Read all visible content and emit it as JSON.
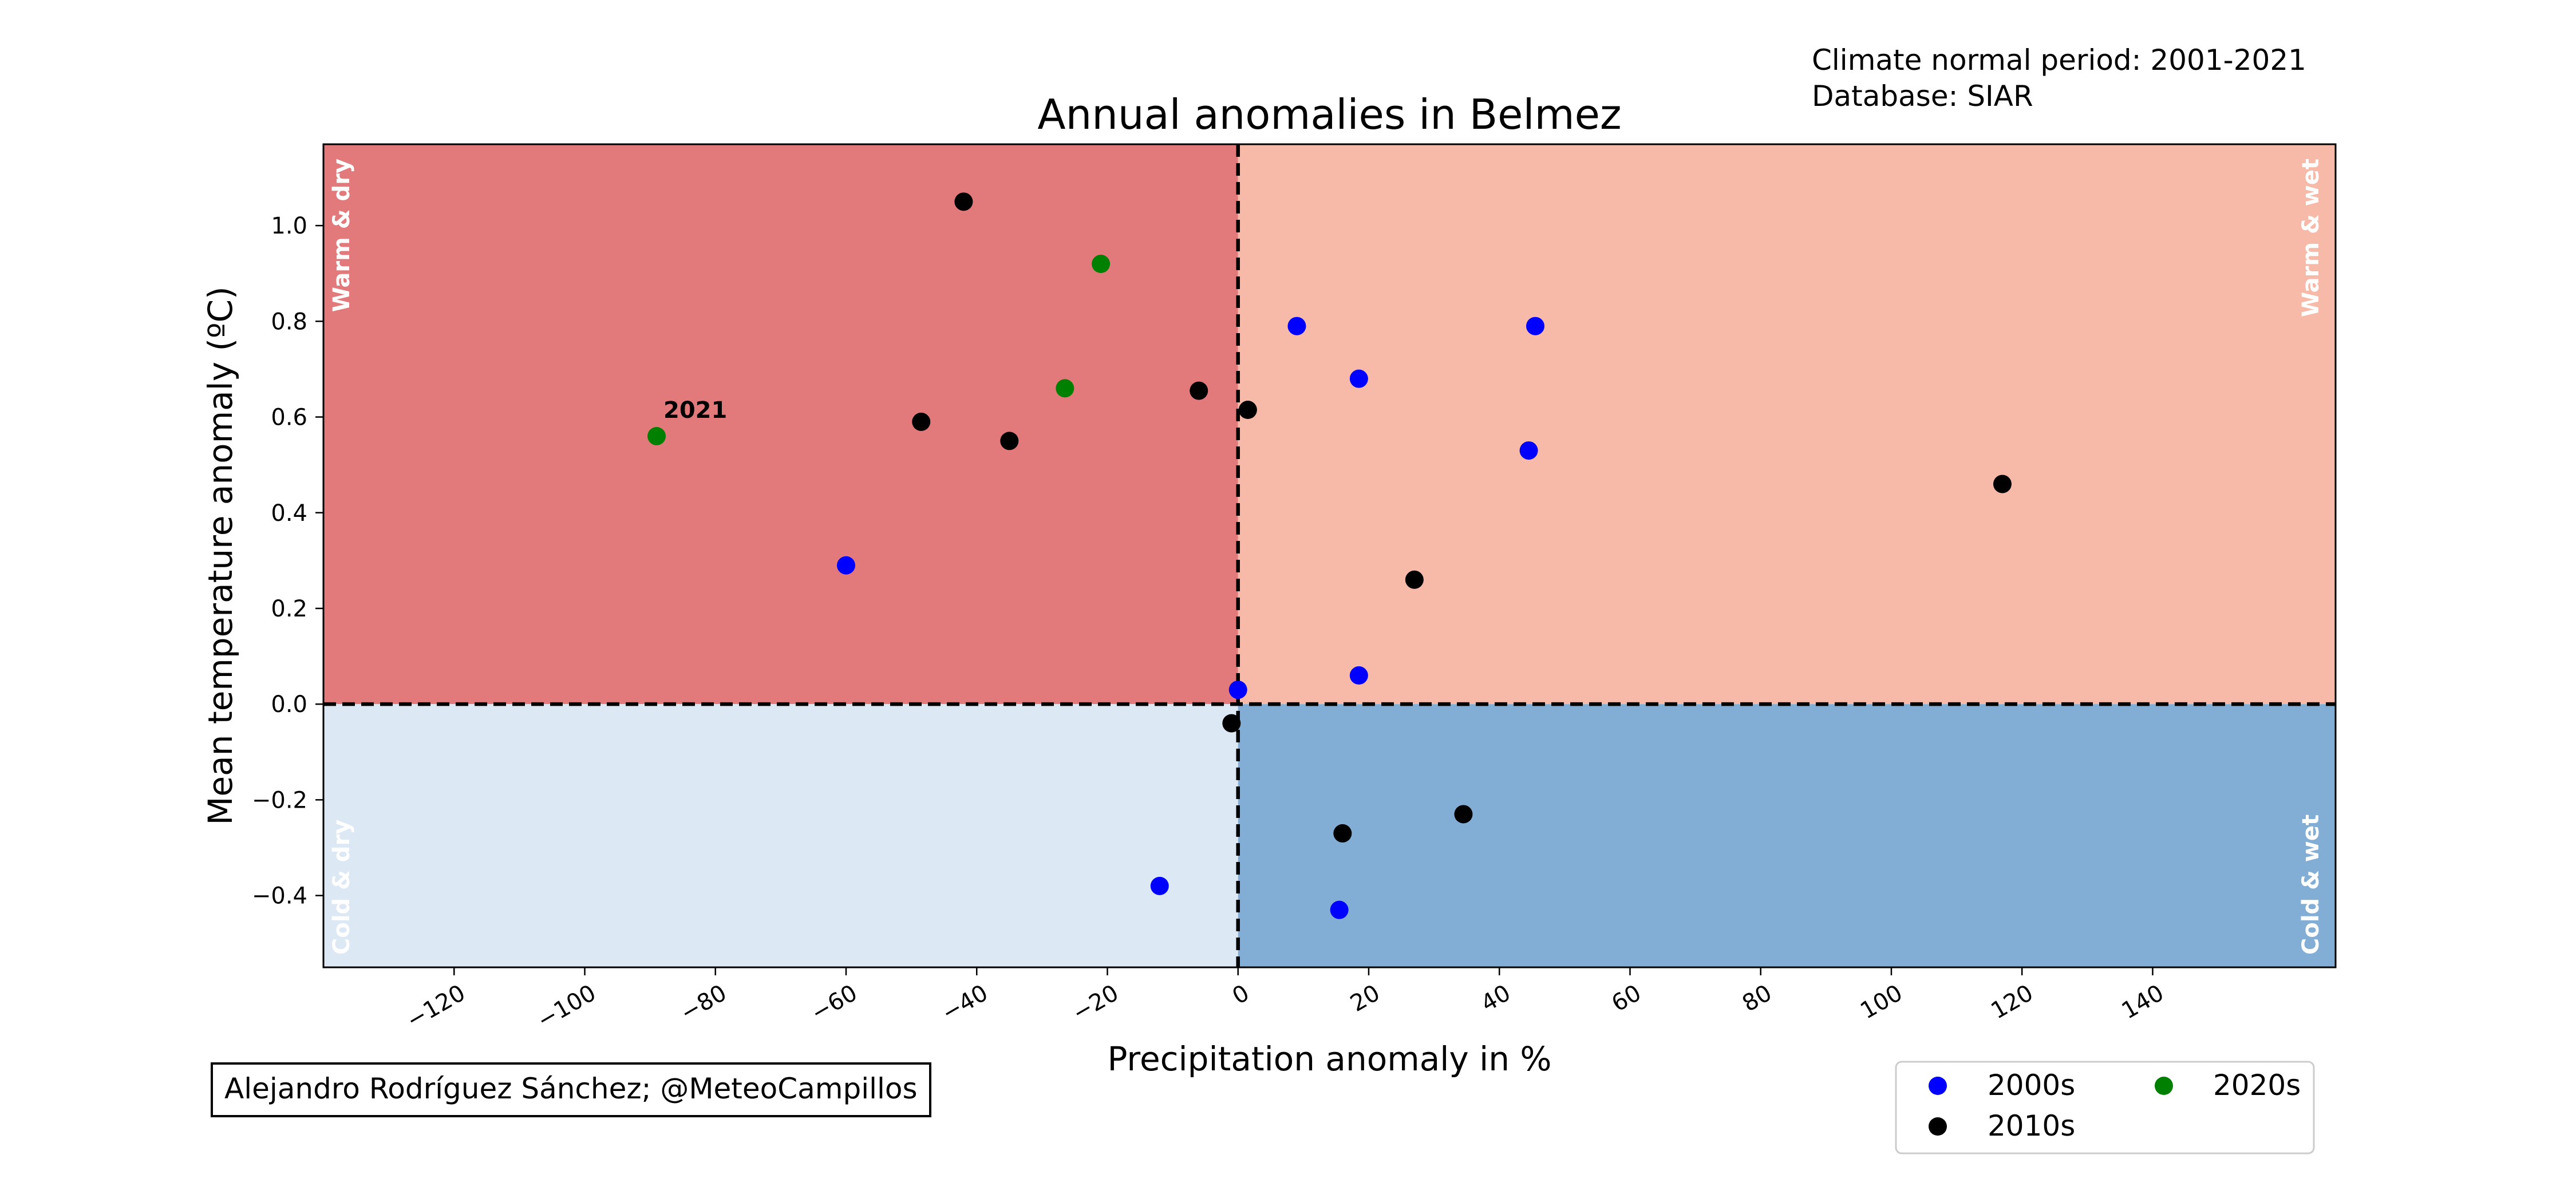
{
  "chart_data": {
    "type": "scatter",
    "title": "Annual anomalies in Belmez",
    "xlabel": "Precipitation anomaly in %",
    "ylabel": "Mean temperature anomaly (ºC)",
    "xlim": [
      -140,
      168
    ],
    "ylim": [
      -0.55,
      1.17
    ],
    "xticks": [
      -120,
      -100,
      -80,
      -60,
      -40,
      -20,
      0,
      20,
      40,
      60,
      80,
      100,
      120,
      140
    ],
    "xtick_labels": [
      "−120",
      "−100",
      "−80",
      "−60",
      "−40",
      "−20",
      "0",
      "20",
      "40",
      "60",
      "80",
      "100",
      "120",
      "140"
    ],
    "yticks": [
      -0.4,
      -0.2,
      0.0,
      0.2,
      0.4,
      0.6,
      0.8,
      1.0
    ],
    "ytick_labels": [
      "−0.4",
      "−0.2",
      "0.0",
      "0.2",
      "0.4",
      "0.6",
      "0.8",
      "1.0"
    ],
    "info_lines": [
      "Climate normal period: 2001-2021",
      "Database: SIAR"
    ],
    "credit": "Alejandro Rodríguez Sánchez; @MeteoCampillos",
    "quadrants": [
      {
        "label": "Warm & dry",
        "color": "#e27a7c"
      },
      {
        "label": "Warm & wet",
        "color": "#f7baa8"
      },
      {
        "label": "Cold & dry",
        "color": "#dde8f5"
      },
      {
        "label": "Cold & wet",
        "color": "#82aed5"
      }
    ],
    "legend_position": "lower-right, outside the axes",
    "grid": false,
    "series": [
      {
        "name": "2000s",
        "color": "#0000ff",
        "points": [
          {
            "x": 9,
            "y": 0.79
          },
          {
            "x": 45.5,
            "y": 0.79
          },
          {
            "x": 18.5,
            "y": 0.68
          },
          {
            "x": 44.5,
            "y": 0.53
          },
          {
            "x": -60,
            "y": 0.29
          },
          {
            "x": 0,
            "y": 0.03
          },
          {
            "x": 18.5,
            "y": 0.06
          },
          {
            "x": -12,
            "y": -0.38
          },
          {
            "x": 15.5,
            "y": -0.43
          }
        ]
      },
      {
        "name": "2010s",
        "color": "#000000",
        "points": [
          {
            "x": -42,
            "y": 1.05
          },
          {
            "x": -48.5,
            "y": 0.59
          },
          {
            "x": -35,
            "y": 0.55
          },
          {
            "x": -6,
            "y": 0.655
          },
          {
            "x": 1.5,
            "y": 0.615
          },
          {
            "x": 117,
            "y": 0.46
          },
          {
            "x": 27,
            "y": 0.26
          },
          {
            "x": -1,
            "y": -0.04
          },
          {
            "x": 16,
            "y": -0.27
          },
          {
            "x": 34.5,
            "y": -0.23
          }
        ]
      },
      {
        "name": "2020s",
        "color": "#008000",
        "points": [
          {
            "x": -21,
            "y": 0.92
          },
          {
            "x": -26.5,
            "y": 0.66
          },
          {
            "x": -89,
            "y": 0.56
          }
        ]
      }
    ],
    "annotations": [
      {
        "text": "2021",
        "x": -89,
        "y": 0.56
      }
    ]
  }
}
